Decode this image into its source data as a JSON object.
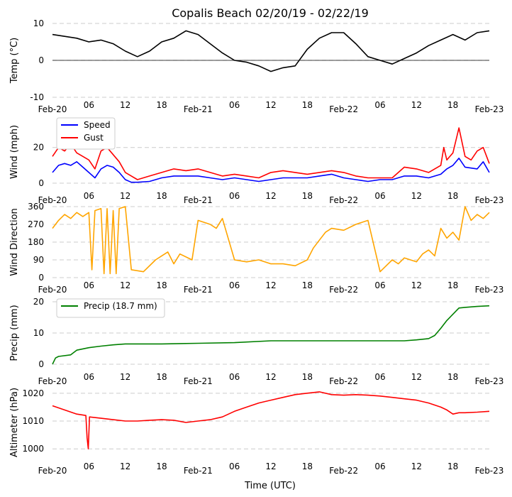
{
  "chart_data": {
    "type": "line",
    "title": "Copalis Beach 02/20/19 - 02/22/19",
    "xlabel": "Time (UTC)",
    "x_range_hours": [
      0,
      72
    ],
    "x_ticks": [
      {
        "h": 0,
        "label": "Feb-20"
      },
      {
        "h": 6,
        "label": "06"
      },
      {
        "h": 12,
        "label": "12"
      },
      {
        "h": 18,
        "label": "18"
      },
      {
        "h": 24,
        "label": "Feb-21"
      },
      {
        "h": 30,
        "label": "06"
      },
      {
        "h": 36,
        "label": "12"
      },
      {
        "h": 42,
        "label": "18"
      },
      {
        "h": 48,
        "label": "Feb-22"
      },
      {
        "h": 54,
        "label": "06"
      },
      {
        "h": 60,
        "label": "12"
      },
      {
        "h": 66,
        "label": "18"
      },
      {
        "h": 72,
        "label": "Feb-23"
      }
    ],
    "panels": [
      {
        "id": "temp",
        "ylabel": "Temp ($^\\circ$C)",
        "ylabel_display": "Temp (°C)",
        "ylim": [
          -10,
          10
        ],
        "yticks": [
          -10,
          0,
          10
        ],
        "zero_line": true,
        "legend": [],
        "series": [
          {
            "name": "Temperature",
            "color": "#000000",
            "x": [
              0,
              2,
              4,
              6,
              8,
              10,
              12,
              14,
              16,
              18,
              20,
              22,
              24,
              26,
              28,
              30,
              32,
              34,
              36,
              38,
              40,
              42,
              44,
              46,
              48,
              50,
              52,
              54,
              56,
              58,
              60,
              62,
              64,
              66,
              68,
              70,
              72
            ],
            "y": [
              7,
              6.5,
              6,
              5,
              5.5,
              4.5,
              2.5,
              1,
              2.5,
              5,
              6,
              8,
              7,
              4.5,
              2,
              0,
              -0.5,
              -1.5,
              -3,
              -2,
              -1.5,
              3,
              6,
              7.5,
              7.5,
              4.5,
              1,
              0,
              -1,
              0.5,
              2,
              4,
              5.5,
              7,
              5.5,
              7.5,
              8
            ]
          }
        ]
      },
      {
        "id": "wind",
        "ylabel": "Wind (mph)",
        "ylim": [
          0,
          35
        ],
        "yticks": [
          0,
          20
        ],
        "legend": [
          "Speed",
          "Gust"
        ],
        "series": [
          {
            "name": "Speed",
            "color": "#0000ff",
            "x": [
              0,
              1,
              2,
              3,
              4,
              5,
              6,
              7,
              8,
              9,
              10,
              11,
              12,
              13,
              14,
              16,
              18,
              20,
              22,
              24,
              26,
              28,
              30,
              32,
              34,
              36,
              38,
              40,
              42,
              44,
              46,
              48,
              50,
              52,
              54,
              56,
              58,
              60,
              62,
              64,
              65,
              66,
              67,
              68,
              70,
              71,
              72
            ],
            "y": [
              6,
              10,
              11,
              10,
              12,
              9,
              6,
              3,
              8,
              10,
              9,
              6,
              2,
              0.5,
              0.5,
              1,
              3,
              4,
              4,
              4,
              3,
              2,
              3,
              2,
              1,
              2,
              3,
              3,
              3,
              4,
              5,
              3,
              2,
              1,
              2,
              2,
              4,
              4,
              3,
              5,
              8,
              10,
              14,
              9,
              8,
              12,
              6
            ]
          },
          {
            "name": "Gust",
            "color": "#ff0000",
            "x": [
              0,
              1,
              2,
              3,
              4,
              5,
              6,
              7,
              8,
              9,
              10,
              11,
              12,
              13,
              14,
              16,
              18,
              20,
              22,
              24,
              26,
              28,
              30,
              32,
              34,
              36,
              38,
              40,
              42,
              44,
              46,
              48,
              50,
              52,
              54,
              56,
              58,
              60,
              62,
              64,
              64.5,
              65,
              66,
              67,
              68,
              69,
              70,
              71,
              72
            ],
            "y": [
              15,
              20,
              18,
              22,
              17,
              15,
              13,
              8,
              18,
              20,
              16,
              12,
              6,
              4,
              2,
              4,
              6,
              8,
              7,
              8,
              6,
              4,
              5,
              4,
              3,
              6,
              7,
              6,
              5,
              6,
              7,
              6,
              4,
              3,
              3,
              3,
              9,
              8,
              6,
              10,
              20,
              13,
              17,
              31,
              15,
              13,
              18,
              20,
              11
            ]
          }
        ]
      },
      {
        "id": "dir",
        "ylabel": "Wind Direction",
        "ylim": [
          0,
          360
        ],
        "yticks": [
          0,
          90,
          180,
          270,
          360
        ],
        "legend": [],
        "series": [
          {
            "name": "Direction",
            "color": "#ffa500",
            "x": [
              0,
              1,
              2,
              3,
              4,
              5,
              6,
              6.5,
              7,
              8,
              8.5,
              9,
              9.5,
              10,
              10.5,
              11,
              12,
              13,
              15,
              17,
              18,
              19,
              20,
              21,
              23,
              24,
              26,
              27,
              28,
              30,
              32,
              34,
              36,
              38,
              40,
              42,
              43,
              44,
              45,
              46,
              48,
              50,
              52,
              54,
              55,
              56,
              57,
              58,
              60,
              61,
              62,
              63,
              64,
              65,
              66,
              67,
              68,
              69,
              70,
              71,
              72
            ],
            "y": [
              250,
              290,
              320,
              300,
              330,
              310,
              330,
              40,
              340,
              350,
              20,
              350,
              20,
              340,
              20,
              350,
              360,
              40,
              30,
              90,
              110,
              130,
              70,
              120,
              90,
              290,
              270,
              250,
              300,
              90,
              80,
              90,
              70,
              70,
              60,
              90,
              150,
              190,
              230,
              250,
              240,
              270,
              290,
              30,
              60,
              90,
              70,
              100,
              80,
              120,
              140,
              110,
              250,
              200,
              230,
              190,
              360,
              290,
              320,
              300,
              330
            ]
          }
        ]
      },
      {
        "id": "precip",
        "ylabel": "Precip (mm)",
        "ylim": [
          0,
          20
        ],
        "yticks": [
          0,
          10,
          20
        ],
        "legend": [
          "Precip (18.7 mm)"
        ],
        "series": [
          {
            "name": "Precip (18.7 mm)",
            "color": "#008000",
            "x": [
              0,
              0.5,
              1,
              3,
              4,
              6,
              8,
              10,
              12,
              18,
              24,
              30,
              36,
              42,
              48,
              54,
              58,
              60,
              61,
              62,
              63,
              64,
              65,
              66,
              67,
              68,
              70,
              72
            ],
            "y": [
              0,
              2,
              2.5,
              3,
              4.5,
              5.3,
              5.8,
              6.2,
              6.5,
              6.5,
              6.7,
              6.9,
              7.5,
              7.5,
              7.5,
              7.5,
              7.5,
              7.8,
              8.0,
              8.2,
              9.2,
              11.5,
              14.0,
              16.0,
              18.0,
              18.2,
              18.5,
              18.7
            ]
          }
        ]
      },
      {
        "id": "alt",
        "ylabel": "Altimeter (hPa)",
        "ylim": [
          997,
          1022
        ],
        "yticks": [
          1000,
          1010,
          1020
        ],
        "legend": [],
        "series": [
          {
            "name": "Altimeter",
            "color": "#ff0000",
            "x": [
              0,
              2,
              4,
              5.5,
              5.7,
              5.9,
              6.1,
              8,
              10,
              12,
              14,
              16,
              18,
              20,
              22,
              24,
              26,
              28,
              30,
              32,
              34,
              36,
              38,
              40,
              42,
              44,
              46,
              48,
              50,
              52,
              54,
              56,
              58,
              60,
              62,
              64,
              65,
              66,
              67,
              68,
              70,
              72
            ],
            "y": [
              1015.5,
              1014,
              1012.5,
              1012,
              1004,
              1000,
              1011.5,
              1011,
              1010.5,
              1010,
              1010,
              1010.3,
              1010.5,
              1010.3,
              1009.5,
              1010,
              1010.5,
              1011.5,
              1013.5,
              1015,
              1016.5,
              1017.5,
              1018.5,
              1019.5,
              1020,
              1020.5,
              1019.5,
              1019.3,
              1019.5,
              1019.3,
              1019,
              1018.5,
              1018,
              1017.5,
              1016.5,
              1015,
              1014,
              1012.5,
              1013,
              1013,
              1013.2,
              1013.5
            ]
          }
        ]
      }
    ]
  }
}
